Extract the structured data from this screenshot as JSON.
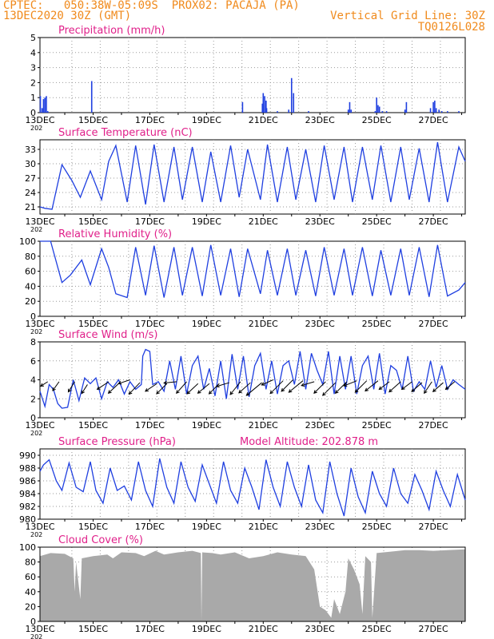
{
  "header": {
    "line1_left": "CPTEC:   050:38W-05:09S  PROX02: PACAJA (PA)",
    "line2_left": "13DEC2020 30Z (GMT)",
    "line2_right": "Vertical Grid Line: 30Z",
    "line3_right": "TQ0126L028",
    "color": "#f08a1c"
  },
  "colors": {
    "series": "#1f3fe0",
    "title": "#e0208a",
    "cloud": "#a9a9a9",
    "arrow": "#000000"
  },
  "x_tick_labels": [
    "13DEC",
    "15DEC",
    "17DEC",
    "19DEC",
    "21DEC",
    "23DEC",
    "25DEC",
    "27DEC"
  ],
  "x_corner_label": "202",
  "chart_data": [
    {
      "type": "bar",
      "title": "Precipitation (mm/h)",
      "ylim": [
        0,
        5
      ],
      "yticks": [
        "0",
        "1",
        "2",
        "3",
        "4",
        "5"
      ],
      "x_domain_days": [
        13.125,
        28.125
      ],
      "x": [
        13.14,
        13.2,
        13.25,
        13.3,
        13.35,
        13.4,
        14.95,
        20.27,
        20.97,
        21.0,
        21.05,
        21.1,
        21.12,
        21.5,
        21.9,
        22.0,
        22.07,
        22.6,
        24.0,
        24.05,
        24.1,
        24.95,
        25.0,
        25.05,
        25.1,
        25.2,
        25.35,
        26.0,
        26.05,
        26.9,
        27.0,
        27.05,
        27.1,
        27.2,
        27.3,
        27.5,
        27.9
      ],
      "values": [
        1.1,
        0.3,
        0.9,
        1.0,
        1.1,
        0.1,
        2.1,
        0.7,
        0.6,
        1.3,
        1.1,
        0.8,
        0.3,
        0.1,
        0.2,
        2.3,
        1.3,
        0.1,
        0.2,
        0.7,
        0.2,
        0.1,
        1.0,
        0.5,
        0.4,
        0.1,
        0.1,
        0.2,
        0.7,
        0.3,
        0.7,
        0.8,
        0.3,
        0.2,
        0.1,
        0.1,
        0.1
      ]
    },
    {
      "type": "line",
      "title": "Surface Temperature (nC)",
      "ylim": [
        19.5,
        35
      ],
      "yticks": [
        "21",
        "24",
        "27",
        "30",
        "33"
      ],
      "x_domain_days": [
        13.125,
        28.125
      ],
      "x": [
        13.125,
        13.3,
        13.55,
        13.9,
        14.25,
        14.55,
        14.9,
        15.3,
        15.55,
        15.8,
        16.2,
        16.5,
        16.85,
        17.15,
        17.5,
        17.85,
        18.15,
        18.5,
        18.85,
        19.15,
        19.5,
        19.85,
        20.15,
        20.45,
        20.9,
        21.15,
        21.5,
        21.85,
        22.15,
        22.5,
        22.85,
        23.15,
        23.5,
        23.85,
        24.15,
        24.5,
        24.85,
        25.15,
        25.5,
        25.85,
        26.15,
        26.5,
        26.85,
        27.15,
        27.5,
        27.9,
        28.125
      ],
      "values": [
        21.0,
        20.7,
        20.5,
        29.8,
        26.5,
        23.0,
        28.5,
        22.5,
        30.5,
        33.8,
        22.0,
        33.8,
        21.5,
        34.0,
        22.0,
        33.5,
        22.5,
        33.5,
        22.0,
        32.5,
        22.0,
        33.8,
        23.0,
        33.0,
        22.5,
        34.0,
        22.0,
        33.5,
        22.5,
        33.0,
        22.0,
        33.8,
        22.5,
        33.5,
        22.0,
        33.5,
        22.5,
        33.8,
        22.0,
        33.5,
        22.5,
        33.2,
        22.0,
        34.5,
        22.0,
        33.5,
        30.5
      ]
    },
    {
      "type": "line",
      "title": "Relative Humidity (%)",
      "ylim": [
        0,
        100
      ],
      "yticks": [
        "0",
        "20",
        "40",
        "60",
        "80",
        "100"
      ],
      "x_domain_days": [
        13.125,
        28.125
      ],
      "x": [
        13.125,
        13.5,
        13.9,
        14.2,
        14.6,
        14.9,
        15.3,
        15.55,
        15.8,
        16.2,
        16.5,
        16.85,
        17.15,
        17.5,
        17.85,
        18.15,
        18.5,
        18.85,
        19.15,
        19.5,
        19.85,
        20.15,
        20.45,
        20.9,
        21.15,
        21.5,
        21.85,
        22.15,
        22.5,
        22.85,
        23.15,
        23.5,
        23.85,
        24.15,
        24.5,
        24.85,
        25.15,
        25.5,
        25.85,
        26.15,
        26.5,
        26.85,
        27.15,
        27.5,
        27.9,
        28.125
      ],
      "values": [
        100,
        100,
        45,
        55,
        75,
        42,
        90,
        65,
        30,
        25,
        92,
        28,
        94,
        25,
        92,
        28,
        92,
        27,
        95,
        28,
        90,
        26,
        90,
        30,
        88,
        28,
        90,
        28,
        88,
        27,
        92,
        28,
        90,
        28,
        92,
        27,
        88,
        28,
        90,
        28,
        92,
        26,
        95,
        27,
        35,
        45
      ]
    },
    {
      "type": "line",
      "title": "Surface Wind (m/s)",
      "ylim": [
        0,
        8
      ],
      "yticks": [
        "0",
        "2",
        "4",
        "6",
        "8"
      ],
      "x_domain_days": [
        13.125,
        28.125
      ],
      "x": [
        13.125,
        13.3,
        13.45,
        13.6,
        13.75,
        13.9,
        14.1,
        14.3,
        14.5,
        14.7,
        14.9,
        15.1,
        15.3,
        15.5,
        15.7,
        15.9,
        16.1,
        16.3,
        16.5,
        16.7,
        16.75,
        16.85,
        17.0,
        17.1,
        17.3,
        17.5,
        17.7,
        17.9,
        18.1,
        18.3,
        18.5,
        18.7,
        18.9,
        19.1,
        19.3,
        19.5,
        19.7,
        19.9,
        20.1,
        20.3,
        20.5,
        20.7,
        20.9,
        21.1,
        21.3,
        21.5,
        21.7,
        21.9,
        22.1,
        22.3,
        22.5,
        22.7,
        22.9,
        23.1,
        23.3,
        23.5,
        23.7,
        23.9,
        24.1,
        24.3,
        24.5,
        24.7,
        24.9,
        25.1,
        25.3,
        25.5,
        25.7,
        25.9,
        26.1,
        26.3,
        26.5,
        26.7,
        26.9,
        27.1,
        27.3,
        27.5,
        27.7,
        27.9,
        28.125
      ],
      "values": [
        2.8,
        1.2,
        3.5,
        3.0,
        1.5,
        1.0,
        1.1,
        4.0,
        1.8,
        4.2,
        3.6,
        4.2,
        2.0,
        3.8,
        3.2,
        4.0,
        2.5,
        3.8,
        3.0,
        3.5,
        6.5,
        7.2,
        7.0,
        3.5,
        3.8,
        2.8,
        6.0,
        3.0,
        6.5,
        2.5,
        5.5,
        6.5,
        3.0,
        5.2,
        2.3,
        6.0,
        2.0,
        6.7,
        3.0,
        6.5,
        2.2,
        5.5,
        6.8,
        3.0,
        6.0,
        2.5,
        5.5,
        6.0,
        3.5,
        7.0,
        3.0,
        6.8,
        5.0,
        3.5,
        7.0,
        2.5,
        6.5,
        3.0,
        6.5,
        2.5,
        5.5,
        6.5,
        3.0,
        6.8,
        2.5,
        5.5,
        5.0,
        3.0,
        6.5,
        2.8,
        3.8,
        3.0,
        6.0,
        3.2,
        5.5,
        3.0,
        4.0,
        3.5,
        3.0
      ],
      "wind_arrows": {
        "x": [
          13.4,
          13.8,
          14.35,
          14.8,
          15.55,
          15.9,
          16.3,
          16.65,
          17.25,
          17.6,
          17.95,
          18.3,
          18.7,
          19.1,
          19.45,
          19.8,
          20.2,
          20.55,
          20.95,
          21.35,
          21.7,
          22.05,
          22.4,
          22.8,
          23.2,
          23.55,
          23.95,
          24.3,
          24.65,
          25.05,
          25.45,
          25.85,
          26.25,
          26.6,
          26.95,
          27.35,
          27.75
        ],
        "level": [
          3.8,
          3.8,
          3.8,
          3.5,
          3.8,
          3.6,
          4.0,
          3.7,
          3.6,
          3.6,
          3.8,
          3.8,
          3.6,
          3.6,
          3.6,
          3.7,
          3.8,
          3.7,
          3.7,
          4.0,
          3.9,
          4.0,
          3.9,
          3.8,
          3.8,
          3.7,
          3.8,
          3.9,
          3.9,
          3.9,
          3.8,
          3.8,
          3.8,
          3.7,
          3.8,
          3.7,
          3.8
        ],
        "dx": [
          -0.55,
          -0.5,
          -0.5,
          -0.45,
          -0.9,
          -0.8,
          -0.9,
          -0.85,
          -0.9,
          -0.8,
          -1.0,
          -0.8,
          -0.85,
          -0.9,
          -0.8,
          -1.0,
          -0.8,
          -0.9,
          -1.2,
          -0.9,
          -1.0,
          -0.9,
          -1.1,
          -1.0,
          -0.9,
          -1.0,
          -0.9,
          -1.0,
          -0.9,
          -1.0,
          -0.8,
          -0.9,
          -0.8,
          -0.8,
          -0.6,
          -0.8,
          -0.7
        ],
        "dy": [
          -0.35,
          -0.7,
          -0.8,
          -0.7,
          -0.6,
          -0.75,
          -0.3,
          -0.9,
          -0.6,
          -0.8,
          -0.1,
          -0.9,
          -0.8,
          -0.75,
          -0.8,
          -0.3,
          -1.0,
          -0.8,
          -1.0,
          -0.4,
          -1.0,
          -0.9,
          -0.9,
          -0.3,
          -0.9,
          -1.0,
          -0.9,
          -0.4,
          -0.9,
          -0.8,
          -0.6,
          -0.8,
          -0.6,
          -0.7,
          -0.9,
          -0.7,
          -0.6
        ]
      }
    },
    {
      "type": "line",
      "title": "Surface Pressure (hPa)",
      "annotation": "Model Altitude: 202.878  m",
      "ylim": [
        980,
        991
      ],
      "yticks": [
        "980",
        "982",
        "984",
        "986",
        "988",
        "990"
      ],
      "x_domain_days": [
        13.125,
        28.125
      ],
      "x": [
        13.125,
        13.25,
        13.45,
        13.7,
        13.9,
        14.15,
        14.4,
        14.65,
        14.9,
        15.1,
        15.35,
        15.6,
        15.85,
        16.1,
        16.35,
        16.6,
        16.85,
        17.1,
        17.35,
        17.6,
        17.85,
        18.1,
        18.35,
        18.6,
        18.85,
        19.1,
        19.35,
        19.6,
        19.85,
        20.1,
        20.35,
        20.6,
        20.85,
        21.1,
        21.35,
        21.6,
        21.85,
        22.1,
        22.35,
        22.6,
        22.85,
        23.1,
        23.35,
        23.6,
        23.85,
        24.1,
        24.35,
        24.6,
        24.85,
        25.1,
        25.35,
        25.6,
        25.85,
        26.1,
        26.35,
        26.6,
        26.85,
        27.1,
        27.35,
        27.6,
        27.85,
        28.125
      ],
      "values": [
        987.5,
        988.5,
        989.3,
        986.0,
        984.5,
        988.8,
        985.0,
        984.3,
        989.0,
        984.5,
        982.5,
        988.0,
        984.5,
        985.2,
        983.0,
        989.0,
        984.5,
        982.0,
        989.5,
        985.0,
        982.5,
        989.0,
        985.0,
        982.8,
        988.5,
        985.5,
        982.5,
        989.0,
        984.5,
        982.5,
        988.0,
        985.0,
        981.5,
        989.3,
        985.0,
        982.0,
        989.0,
        985.0,
        982.0,
        988.5,
        983.0,
        981.0,
        989.0,
        984.0,
        980.5,
        988.0,
        983.5,
        981.0,
        987.5,
        984.0,
        982.0,
        988.0,
        984.0,
        982.5,
        987.0,
        984.5,
        981.5,
        987.5,
        984.5,
        982.0,
        987.0,
        983.0
      ]
    },
    {
      "type": "area",
      "title": "Cloud Cover (%)",
      "ylim": [
        0,
        100
      ],
      "yticks": [
        "0",
        "20",
        "40",
        "60",
        "80",
        "100"
      ],
      "x_domain_days": [
        13.125,
        28.125
      ],
      "x": [
        13.125,
        13.5,
        14.0,
        14.3,
        14.35,
        14.4,
        14.55,
        14.6,
        15.0,
        15.5,
        15.7,
        16.0,
        16.5,
        16.8,
        17.2,
        17.5,
        18.0,
        18.5,
        18.8,
        18.82,
        18.85,
        19.2,
        19.5,
        20.0,
        20.5,
        21.0,
        21.5,
        22.0,
        22.5,
        22.8,
        23.0,
        23.2,
        23.4,
        23.5,
        23.7,
        23.9,
        24.0,
        24.2,
        24.4,
        24.5,
        24.6,
        24.8,
        24.85,
        25.0,
        25.5,
        26.0,
        26.5,
        27.0,
        27.5,
        28.125
      ],
      "values": [
        88,
        92,
        91,
        85,
        40,
        80,
        30,
        85,
        88,
        90,
        85,
        93,
        92,
        88,
        95,
        90,
        93,
        95,
        92,
        0,
        93,
        92,
        90,
        93,
        85,
        88,
        93,
        90,
        88,
        70,
        20,
        15,
        5,
        30,
        10,
        40,
        85,
        70,
        50,
        10,
        88,
        80,
        5,
        92,
        94,
        96,
        96,
        95,
        96,
        97
      ]
    }
  ]
}
